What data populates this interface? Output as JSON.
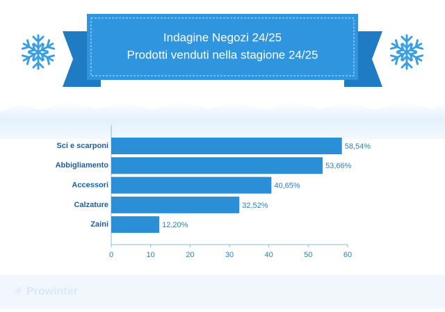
{
  "chart_data": {
    "type": "hbar",
    "title": "Indagine Negozi 24/25",
    "subtitle": "Prodotti venduti nella stagione 24/25",
    "categories": [
      "Sci e scarponi",
      "Abbigliamento",
      "Accessori",
      "Calzature",
      "Zaini"
    ],
    "values": [
      58.54,
      53.66,
      40.65,
      32.52,
      12.2
    ],
    "value_labels": [
      "58,54%",
      "53,66%",
      "40,65%",
      "32,52%",
      "12,20%"
    ],
    "color": "#2b8fd8",
    "xlim": [
      0,
      60
    ],
    "xticks": [
      0,
      10,
      20,
      30,
      40,
      50,
      60
    ],
    "brand": "Prowinter"
  }
}
